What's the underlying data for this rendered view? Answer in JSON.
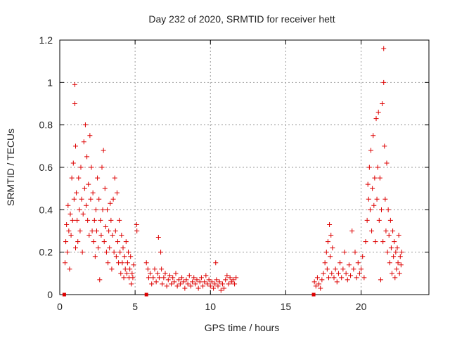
{
  "colors": {
    "marker": "#dd0000",
    "grid": "#9a9a9a",
    "axis": "#000000",
    "text": "#222222",
    "background": "#ffffff"
  },
  "chart_data": {
    "type": "scatter",
    "title": "Day 232 of 2020, SRMTID for receiver hett",
    "xlabel": "GPS time / hours",
    "ylabel": "SRMTID / TECUs",
    "xlim": [
      0,
      24.5
    ],
    "ylim": [
      0,
      1.2
    ],
    "xticks": [
      0,
      5,
      10,
      15,
      20
    ],
    "xtick_labels": [
      "0",
      "5",
      "10",
      "15",
      "20"
    ],
    "yticks": [
      0,
      0.2,
      0.4,
      0.6,
      0.8,
      1,
      1.2
    ],
    "ytick_labels": [
      "0",
      "0.2",
      "0.4",
      "0.6",
      "0.8",
      "1",
      "1.2"
    ],
    "grid": true,
    "marker": "plus",
    "zero_markers_x": [
      0.3,
      5.75,
      16.85
    ],
    "series": [
      {
        "name": "SRMTID",
        "points": [
          [
            0.35,
            0.15
          ],
          [
            0.4,
            0.25
          ],
          [
            0.45,
            0.33
          ],
          [
            0.5,
            0.2
          ],
          [
            0.55,
            0.42
          ],
          [
            0.6,
            0.3
          ],
          [
            0.65,
            0.12
          ],
          [
            0.7,
            0.38
          ],
          [
            0.75,
            0.28
          ],
          [
            0.8,
            0.55
          ],
          [
            0.85,
            0.35
          ],
          [
            0.9,
            0.62
          ],
          [
            0.95,
            0.45
          ],
          [
            1.0,
            0.99
          ],
          [
            1.0,
            0.9
          ],
          [
            1.05,
            0.7
          ],
          [
            1.05,
            0.22
          ],
          [
            1.1,
            0.48
          ],
          [
            1.15,
            0.35
          ],
          [
            1.2,
            0.25
          ],
          [
            1.25,
            0.55
          ],
          [
            1.3,
            0.4
          ],
          [
            1.35,
            0.3
          ],
          [
            1.4,
            0.6
          ],
          [
            1.45,
            0.45
          ],
          [
            1.5,
            0.2
          ],
          [
            1.55,
            0.38
          ],
          [
            1.6,
            0.72
          ],
          [
            1.65,
            0.5
          ],
          [
            1.7,
            0.8
          ],
          [
            1.75,
            0.42
          ],
          [
            1.8,
            0.65
          ],
          [
            1.85,
            0.35
          ],
          [
            1.9,
            0.52
          ],
          [
            1.95,
            0.28
          ],
          [
            2.0,
            0.75
          ],
          [
            2.05,
            0.45
          ],
          [
            2.1,
            0.6
          ],
          [
            2.15,
            0.3
          ],
          [
            2.2,
            0.48
          ],
          [
            2.25,
            0.25
          ],
          [
            2.3,
            0.35
          ],
          [
            2.35,
            0.18
          ],
          [
            2.4,
            0.4
          ],
          [
            2.45,
            0.3
          ],
          [
            2.5,
            0.55
          ],
          [
            2.55,
            0.22
          ],
          [
            2.6,
            0.45
          ],
          [
            2.65,
            0.07
          ],
          [
            2.7,
            0.35
          ],
          [
            2.75,
            0.28
          ],
          [
            2.8,
            0.6
          ],
          [
            2.85,
            0.4
          ],
          [
            2.9,
            0.68
          ],
          [
            2.95,
            0.25
          ],
          [
            3.0,
            0.5
          ],
          [
            3.05,
            0.32
          ],
          [
            3.1,
            0.2
          ],
          [
            3.15,
            0.4
          ],
          [
            3.2,
            0.15
          ],
          [
            3.25,
            0.3
          ],
          [
            3.3,
            0.22
          ],
          [
            3.35,
            0.43
          ],
          [
            3.4,
            0.35
          ],
          [
            3.45,
            0.12
          ],
          [
            3.5,
            0.28
          ],
          [
            3.55,
            0.45
          ],
          [
            3.6,
            0.2
          ],
          [
            3.65,
            0.55
          ],
          [
            3.7,
            0.3
          ],
          [
            3.75,
            0.18
          ],
          [
            3.8,
            0.48
          ],
          [
            3.85,
            0.25
          ],
          [
            3.9,
            0.15
          ],
          [
            3.95,
            0.35
          ],
          [
            4.0,
            0.2
          ],
          [
            4.05,
            0.1
          ],
          [
            4.1,
            0.28
          ],
          [
            4.15,
            0.15
          ],
          [
            4.2,
            0.22
          ],
          [
            4.25,
            0.08
          ],
          [
            4.3,
            0.18
          ],
          [
            4.35,
            0.12
          ],
          [
            4.4,
            0.25
          ],
          [
            4.45,
            0.1
          ],
          [
            4.5,
            0.15
          ],
          [
            4.55,
            0.2
          ],
          [
            4.6,
            0.08
          ],
          [
            4.65,
            0.12
          ],
          [
            4.7,
            0.18
          ],
          [
            4.75,
            0.05
          ],
          [
            4.8,
            0.1
          ],
          [
            4.85,
            0.08
          ],
          [
            4.9,
            0.14
          ],
          [
            5.1,
            0.33
          ],
          [
            5.12,
            0.3
          ],
          [
            5.75,
            0.15
          ],
          [
            5.85,
            0.12
          ],
          [
            5.9,
            0.08
          ],
          [
            6.0,
            0.1
          ],
          [
            6.1,
            0.05
          ],
          [
            6.2,
            0.08
          ],
          [
            6.3,
            0.12
          ],
          [
            6.4,
            0.06
          ],
          [
            6.5,
            0.1
          ],
          [
            6.55,
            0.27
          ],
          [
            6.6,
            0.08
          ],
          [
            6.7,
            0.2
          ],
          [
            6.75,
            0.12
          ],
          [
            6.8,
            0.05
          ],
          [
            6.9,
            0.08
          ],
          [
            7.0,
            0.1
          ],
          [
            7.1,
            0.04
          ],
          [
            7.2,
            0.07
          ],
          [
            7.3,
            0.09
          ],
          [
            7.4,
            0.05
          ],
          [
            7.5,
            0.08
          ],
          [
            7.6,
            0.06
          ],
          [
            7.7,
            0.1
          ],
          [
            7.8,
            0.04
          ],
          [
            7.9,
            0.07
          ],
          [
            8.0,
            0.05
          ],
          [
            8.1,
            0.08
          ],
          [
            8.2,
            0.06
          ],
          [
            8.3,
            0.03
          ],
          [
            8.4,
            0.07
          ],
          [
            8.5,
            0.05
          ],
          [
            8.6,
            0.09
          ],
          [
            8.7,
            0.04
          ],
          [
            8.8,
            0.06
          ],
          [
            8.9,
            0.08
          ],
          [
            9.0,
            0.05
          ],
          [
            9.1,
            0.07
          ],
          [
            9.2,
            0.03
          ],
          [
            9.3,
            0.06
          ],
          [
            9.4,
            0.08
          ],
          [
            9.5,
            0.04
          ],
          [
            9.6,
            0.06
          ],
          [
            9.7,
            0.09
          ],
          [
            9.8,
            0.05
          ],
          [
            9.9,
            0.07
          ],
          [
            10.0,
            0.04
          ],
          [
            10.1,
            0.06
          ],
          [
            10.2,
            0.03
          ],
          [
            10.3,
            0.05
          ],
          [
            10.35,
            0.15
          ],
          [
            10.4,
            0.07
          ],
          [
            10.5,
            0.04
          ],
          [
            10.6,
            0.06
          ],
          [
            10.7,
            0.02
          ],
          [
            10.8,
            0.05
          ],
          [
            10.9,
            0.03
          ],
          [
            11.0,
            0.07
          ],
          [
            11.1,
            0.09
          ],
          [
            11.2,
            0.05
          ],
          [
            11.3,
            0.08
          ],
          [
            11.4,
            0.06
          ],
          [
            11.5,
            0.07
          ],
          [
            11.6,
            0.05
          ],
          [
            11.7,
            0.08
          ],
          [
            16.9,
            0.06
          ],
          [
            17.0,
            0.04
          ],
          [
            17.1,
            0.08
          ],
          [
            17.2,
            0.05
          ],
          [
            17.3,
            0.03
          ],
          [
            17.4,
            0.07
          ],
          [
            17.5,
            0.1
          ],
          [
            17.6,
            0.15
          ],
          [
            17.7,
            0.2
          ],
          [
            17.75,
            0.12
          ],
          [
            17.8,
            0.25
          ],
          [
            17.85,
            0.08
          ],
          [
            17.9,
            0.33
          ],
          [
            17.95,
            0.18
          ],
          [
            18.0,
            0.28
          ],
          [
            18.05,
            0.1
          ],
          [
            18.1,
            0.22
          ],
          [
            18.2,
            0.08
          ],
          [
            18.3,
            0.12
          ],
          [
            18.4,
            0.06
          ],
          [
            18.5,
            0.1
          ],
          [
            18.6,
            0.15
          ],
          [
            18.7,
            0.08
          ],
          [
            18.8,
            0.12
          ],
          [
            18.9,
            0.2
          ],
          [
            19.0,
            0.1
          ],
          [
            19.1,
            0.07
          ],
          [
            19.2,
            0.14
          ],
          [
            19.3,
            0.09
          ],
          [
            19.4,
            0.3
          ],
          [
            19.5,
            0.12
          ],
          [
            19.6,
            0.2
          ],
          [
            19.7,
            0.08
          ],
          [
            19.8,
            0.15
          ],
          [
            19.9,
            0.1
          ],
          [
            20.0,
            0.12
          ],
          [
            20.1,
            0.18
          ],
          [
            20.2,
            0.08
          ],
          [
            20.3,
            0.25
          ],
          [
            20.4,
            0.35
          ],
          [
            20.45,
            0.52
          ],
          [
            20.5,
            0.45
          ],
          [
            20.55,
            0.6
          ],
          [
            20.6,
            0.4
          ],
          [
            20.65,
            0.68
          ],
          [
            20.7,
            0.3
          ],
          [
            20.75,
            0.5
          ],
          [
            20.8,
            0.75
          ],
          [
            20.85,
            0.42
          ],
          [
            20.9,
            0.55
          ],
          [
            20.95,
            0.25
          ],
          [
            21.0,
            0.83
          ],
          [
            21.05,
            0.45
          ],
          [
            21.1,
            0.6
          ],
          [
            21.15,
            0.86
          ],
          [
            21.2,
            0.35
          ],
          [
            21.25,
            0.55
          ],
          [
            21.3,
            0.07
          ],
          [
            21.35,
            0.4
          ],
          [
            21.4,
            0.9
          ],
          [
            21.45,
            0.25
          ],
          [
            21.5,
            1.16
          ],
          [
            21.5,
            1.0
          ],
          [
            21.55,
            0.7
          ],
          [
            21.6,
            0.45
          ],
          [
            21.65,
            0.3
          ],
          [
            21.7,
            0.62
          ],
          [
            21.75,
            0.2
          ],
          [
            21.8,
            0.4
          ],
          [
            21.85,
            0.28
          ],
          [
            21.9,
            0.15
          ],
          [
            21.95,
            0.35
          ],
          [
            22.0,
            0.22
          ],
          [
            22.05,
            0.1
          ],
          [
            22.1,
            0.3
          ],
          [
            22.15,
            0.18
          ],
          [
            22.2,
            0.25
          ],
          [
            22.25,
            0.08
          ],
          [
            22.3,
            0.2
          ],
          [
            22.35,
            0.12
          ],
          [
            22.4,
            0.22
          ],
          [
            22.45,
            0.15
          ],
          [
            22.5,
            0.28
          ],
          [
            22.55,
            0.1
          ],
          [
            22.6,
            0.18
          ],
          [
            22.65,
            0.14
          ],
          [
            22.7,
            0.2
          ]
        ]
      }
    ]
  }
}
